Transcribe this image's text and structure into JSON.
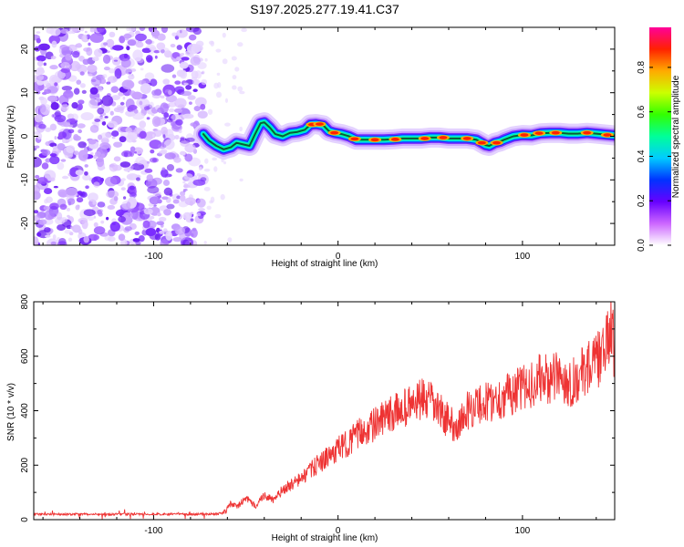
{
  "title": "S197.2025.277.19.41.C37",
  "chart_data": [
    {
      "type": "heatmap",
      "name": "spectrogram",
      "xlabel": "Height of straight line (km)",
      "ylabel": "Frequency (Hz)",
      "xlim": [
        -165,
        150
      ],
      "ylim": [
        -25,
        25
      ],
      "xticks": [
        -100,
        0,
        100
      ],
      "yticks": [
        -20,
        -10,
        0,
        10,
        20
      ],
      "noise_region_x": [
        -165,
        -73
      ],
      "ridge": {
        "x": [
          -73,
          -70,
          -66,
          -62,
          -58,
          -55,
          -52,
          -48,
          -45,
          -42,
          -40,
          -37,
          -34,
          -30,
          -26,
          -22,
          -18,
          -15,
          -12,
          -8,
          -5,
          -2,
          2,
          6,
          10,
          15,
          20,
          25,
          30,
          35,
          40,
          45,
          50,
          55,
          60,
          65,
          70,
          75,
          78,
          80,
          82,
          85,
          88,
          90,
          95,
          100,
          105,
          110,
          115,
          120,
          125,
          130,
          135,
          140,
          145,
          150
        ],
        "y": [
          0.5,
          -1.0,
          -2.2,
          -3.0,
          -2.5,
          -1.5,
          -1.8,
          -2.2,
          0.5,
          3.0,
          3.2,
          2.0,
          0.5,
          0.0,
          0.8,
          1.0,
          1.5,
          2.7,
          2.8,
          2.5,
          1.2,
          0.8,
          0.5,
          0.0,
          -0.8,
          -0.8,
          -0.8,
          -0.8,
          -0.7,
          -0.5,
          -0.5,
          -0.5,
          -0.3,
          -0.3,
          -0.5,
          -0.5,
          -0.5,
          -0.8,
          -1.5,
          -2.0,
          -2.2,
          -1.5,
          -1.2,
          -0.8,
          0.0,
          0.3,
          0.2,
          0.7,
          0.8,
          0.8,
          0.6,
          0.6,
          0.8,
          0.6,
          0.4,
          0.2
        ]
      },
      "colorbar": {
        "label": "Normalized spectral amplitude",
        "ticks": [
          "0.0",
          "0.2",
          "0.4",
          "0.6",
          "0.8"
        ],
        "range": [
          0.0,
          0.98
        ]
      }
    },
    {
      "type": "line",
      "name": "snr",
      "xlabel": "Height of straight line (km)",
      "ylabel": "SNR (10 * v/v)",
      "xlim": [
        -165,
        150
      ],
      "ylim": [
        0,
        800
      ],
      "xticks": [
        -100,
        0,
        100
      ],
      "yticks": [
        0,
        200,
        400,
        600,
        800
      ],
      "color": "#ee3333",
      "series": [
        {
          "name": "SNR",
          "x": [
            -165,
            -150,
            -130,
            -110,
            -90,
            -75,
            -65,
            -62,
            -58,
            -55,
            -50,
            -45,
            -40,
            -35,
            -30,
            -25,
            -20,
            -15,
            -10,
            -5,
            0,
            5,
            10,
            15,
            20,
            25,
            30,
            35,
            40,
            45,
            50,
            55,
            60,
            65,
            70,
            75,
            80,
            85,
            90,
            95,
            100,
            105,
            110,
            115,
            120,
            125,
            130,
            135,
            140,
            145,
            148,
            150
          ],
          "y": [
            20,
            20,
            20,
            20,
            20,
            20,
            22,
            25,
            60,
            45,
            80,
            50,
            90,
            70,
            110,
            130,
            150,
            180,
            210,
            230,
            260,
            280,
            310,
            330,
            350,
            370,
            390,
            410,
            420,
            440,
            430,
            400,
            360,
            340,
            400,
            420,
            430,
            440,
            450,
            470,
            480,
            500,
            520,
            510,
            530,
            500,
            520,
            560,
            580,
            620,
            720,
            600
          ]
        }
      ]
    }
  ]
}
